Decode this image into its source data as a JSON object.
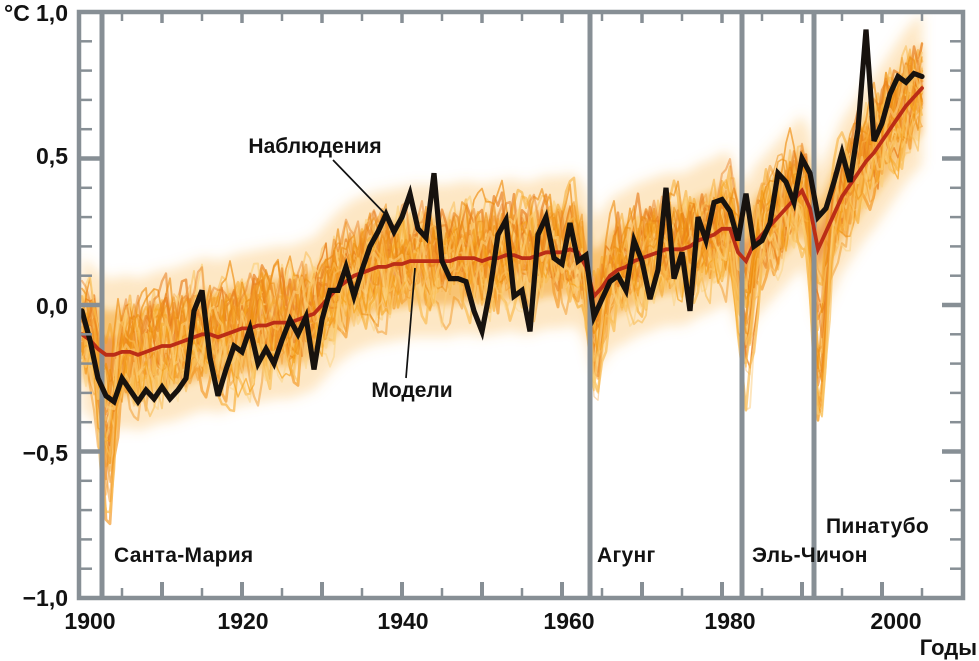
{
  "chart": {
    "y_axis_unit": "°C",
    "x_axis_title": "Годы",
    "y_ticks": [
      {
        "label": "1,0"
      },
      {
        "label": "0,5"
      },
      {
        "label": "0,0"
      },
      {
        "label": "−0,5"
      },
      {
        "label": "−1,0"
      }
    ],
    "x_ticks": [
      {
        "label": "1900"
      },
      {
        "label": "1920"
      },
      {
        "label": "1940"
      },
      {
        "label": "1960"
      },
      {
        "label": "1980"
      },
      {
        "label": "2000"
      }
    ],
    "annotations": {
      "observations": "Наблюдения",
      "models": "Модели"
    },
    "colors": {
      "axis": "#878f95",
      "eruption_line": "#878f95",
      "observations": "#17120e",
      "models": "#bb2d16",
      "band_outer": "#f8b548",
      "band_inner": "#f4a023",
      "band_core": "#e0641e",
      "ensemble": [
        "#f6a41f",
        "#f9bd55",
        "#ee8d10",
        "#fbd27f",
        "#f39b2c",
        "#e87b1a"
      ],
      "text": "#121212"
    }
  },
  "chart_data": {
    "type": "line",
    "title": "",
    "xlabel": "Годы",
    "ylabel": "°C",
    "xlim": [
      1900,
      2005
    ],
    "ylim": [
      -1.0,
      1.0
    ],
    "grid": false,
    "x": [
      1900,
      1901,
      1902,
      1903,
      1904,
      1905,
      1906,
      1907,
      1908,
      1909,
      1910,
      1911,
      1912,
      1913,
      1914,
      1915,
      1916,
      1917,
      1918,
      1919,
      1920,
      1921,
      1922,
      1923,
      1924,
      1925,
      1926,
      1927,
      1928,
      1929,
      1930,
      1931,
      1932,
      1933,
      1934,
      1935,
      1936,
      1937,
      1938,
      1939,
      1940,
      1941,
      1942,
      1943,
      1944,
      1945,
      1946,
      1947,
      1948,
      1949,
      1950,
      1951,
      1952,
      1953,
      1954,
      1955,
      1956,
      1957,
      1958,
      1959,
      1960,
      1961,
      1962,
      1963,
      1964,
      1965,
      1966,
      1967,
      1968,
      1969,
      1970,
      1971,
      1972,
      1973,
      1974,
      1975,
      1976,
      1977,
      1978,
      1979,
      1980,
      1981,
      1982,
      1983,
      1984,
      1985,
      1986,
      1987,
      1988,
      1989,
      1990,
      1991,
      1992,
      1993,
      1994,
      1995,
      1996,
      1997,
      1998,
      1999,
      2000,
      2001,
      2002,
      2003,
      2004,
      2005
    ],
    "series": [
      {
        "name": "Наблюдения",
        "color": "#17120e",
        "values": [
          -0.02,
          -0.12,
          -0.25,
          -0.31,
          -0.33,
          -0.25,
          -0.29,
          -0.33,
          -0.29,
          -0.32,
          -0.28,
          -0.32,
          -0.29,
          -0.25,
          -0.02,
          0.05,
          -0.18,
          -0.31,
          -0.22,
          -0.14,
          -0.16,
          -0.08,
          -0.2,
          -0.15,
          -0.2,
          -0.12,
          -0.05,
          -0.1,
          -0.04,
          -0.22,
          -0.05,
          0.05,
          0.05,
          0.13,
          0.03,
          0.12,
          0.2,
          0.25,
          0.31,
          0.25,
          0.3,
          0.38,
          0.26,
          0.23,
          0.45,
          0.15,
          0.09,
          0.09,
          0.08,
          -0.02,
          -0.09,
          0.05,
          0.24,
          0.29,
          0.03,
          0.05,
          -0.09,
          0.24,
          0.3,
          0.16,
          0.14,
          0.28,
          0.15,
          0.17,
          -0.04,
          0.02,
          0.08,
          0.1,
          0.05,
          0.22,
          0.15,
          0.02,
          0.12,
          0.4,
          0.09,
          0.18,
          -0.02,
          0.3,
          0.22,
          0.35,
          0.36,
          0.32,
          0.22,
          0.38,
          0.2,
          0.22,
          0.28,
          0.45,
          0.42,
          0.35,
          0.5,
          0.45,
          0.3,
          0.33,
          0.42,
          0.52,
          0.42,
          0.6,
          0.94,
          0.56,
          0.62,
          0.72,
          0.78,
          0.76,
          0.79,
          0.78
        ]
      },
      {
        "name": "Модели",
        "color": "#bb2d16",
        "values": [
          -0.1,
          -0.12,
          -0.15,
          -0.17,
          -0.17,
          -0.16,
          -0.16,
          -0.17,
          -0.16,
          -0.15,
          -0.14,
          -0.14,
          -0.13,
          -0.12,
          -0.11,
          -0.1,
          -0.1,
          -0.11,
          -0.1,
          -0.09,
          -0.08,
          -0.08,
          -0.07,
          -0.07,
          -0.06,
          -0.06,
          -0.06,
          -0.05,
          -0.04,
          -0.03,
          0.0,
          0.03,
          0.06,
          0.08,
          0.1,
          0.11,
          0.12,
          0.13,
          0.13,
          0.14,
          0.14,
          0.15,
          0.15,
          0.15,
          0.15,
          0.15,
          0.15,
          0.16,
          0.16,
          0.16,
          0.15,
          0.16,
          0.16,
          0.17,
          0.17,
          0.16,
          0.16,
          0.17,
          0.18,
          0.18,
          0.18,
          0.19,
          0.18,
          0.13,
          0.03,
          0.06,
          0.1,
          0.12,
          0.13,
          0.15,
          0.16,
          0.17,
          0.18,
          0.19,
          0.19,
          0.19,
          0.2,
          0.22,
          0.23,
          0.24,
          0.26,
          0.26,
          0.18,
          0.15,
          0.21,
          0.24,
          0.27,
          0.3,
          0.33,
          0.36,
          0.39,
          0.33,
          0.19,
          0.25,
          0.31,
          0.37,
          0.41,
          0.45,
          0.49,
          0.52,
          0.56,
          0.6,
          0.64,
          0.68,
          0.71,
          0.74
        ]
      }
    ],
    "ensemble": {
      "members": 34,
      "offset_spread": 0.17,
      "noise": 0.22,
      "eruption_dip": [
        0.3,
        0.22,
        0.26,
        0.42
      ]
    },
    "eruptions": [
      {
        "name": "Санта-Мария",
        "year": 1902
      },
      {
        "name": "Агунг",
        "year": 1963
      },
      {
        "name": "Эль-Чичон",
        "year": 1982
      },
      {
        "name": "Пинатубо",
        "year": 1991
      }
    ],
    "x_major_ticks": [
      1910,
      1920,
      1930,
      1940,
      1950,
      1960,
      1970,
      1980,
      1990,
      2000
    ],
    "y_major_ticks": [
      -0.5,
      0.0,
      0.5
    ],
    "legend_position": "none"
  }
}
